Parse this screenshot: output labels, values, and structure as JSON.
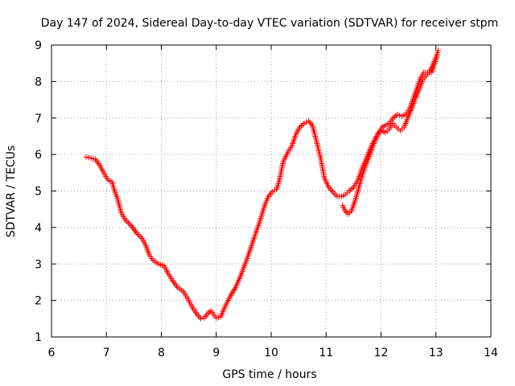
{
  "chart_data": {
    "type": "scatter",
    "title": "Day 147 of 2024, Sidereal Day-to-day VTEC variation (SDTVAR) for receiver stpm",
    "xlabel": "GPS time / hours",
    "ylabel": "SDTVAR / TECUs",
    "xlim": [
      6,
      14
    ],
    "ylim": [
      1,
      9
    ],
    "x_ticks": [
      "6",
      "7",
      "8",
      "9",
      "10",
      "11",
      "12",
      "13",
      "14"
    ],
    "y_ticks": [
      "1",
      "2",
      "3",
      "4",
      "5",
      "6",
      "7",
      "8",
      "9"
    ],
    "grid": true,
    "marker": "+",
    "color": "#ff0000",
    "series": [
      {
        "points": [
          [
            6.63,
            5.93
          ],
          [
            6.72,
            5.9
          ],
          [
            6.8,
            5.87
          ],
          [
            6.88,
            5.7
          ],
          [
            6.95,
            5.5
          ],
          [
            7.03,
            5.3
          ],
          [
            7.1,
            5.25
          ],
          [
            7.15,
            5.0
          ],
          [
            7.2,
            4.8
          ],
          [
            7.27,
            4.4
          ],
          [
            7.35,
            4.2
          ],
          [
            7.45,
            4.05
          ],
          [
            7.55,
            3.85
          ],
          [
            7.65,
            3.7
          ],
          [
            7.72,
            3.5
          ],
          [
            7.78,
            3.25
          ],
          [
            7.85,
            3.1
          ],
          [
            7.95,
            3.0
          ],
          [
            8.05,
            2.95
          ],
          [
            8.12,
            2.75
          ],
          [
            8.2,
            2.55
          ],
          [
            8.3,
            2.35
          ],
          [
            8.4,
            2.25
          ],
          [
            8.48,
            2.05
          ],
          [
            8.57,
            1.8
          ],
          [
            8.65,
            1.62
          ],
          [
            8.72,
            1.5
          ],
          [
            8.78,
            1.52
          ],
          [
            8.85,
            1.65
          ],
          [
            8.9,
            1.72
          ],
          [
            8.95,
            1.62
          ],
          [
            9.0,
            1.52
          ],
          [
            9.08,
            1.55
          ],
          [
            9.15,
            1.8
          ],
          [
            9.25,
            2.1
          ],
          [
            9.35,
            2.35
          ],
          [
            9.45,
            2.7
          ],
          [
            9.55,
            3.1
          ],
          [
            9.63,
            3.45
          ],
          [
            9.72,
            3.85
          ],
          [
            9.8,
            4.2
          ],
          [
            9.88,
            4.6
          ],
          [
            9.95,
            4.85
          ],
          [
            10.02,
            4.98
          ],
          [
            10.1,
            5.05
          ],
          [
            10.15,
            5.3
          ],
          [
            10.22,
            5.8
          ],
          [
            10.3,
            6.05
          ],
          [
            10.38,
            6.25
          ],
          [
            10.45,
            6.55
          ],
          [
            10.52,
            6.75
          ],
          [
            10.6,
            6.85
          ],
          [
            10.68,
            6.92
          ],
          [
            10.75,
            6.8
          ],
          [
            10.82,
            6.4
          ],
          [
            10.9,
            5.9
          ],
          [
            10.97,
            5.35
          ],
          [
            11.05,
            5.1
          ],
          [
            11.12,
            4.98
          ],
          [
            11.2,
            4.85
          ],
          [
            11.28,
            4.85
          ],
          [
            11.35,
            4.9
          ],
          [
            11.42,
            5.0
          ],
          [
            11.5,
            5.1
          ],
          [
            11.58,
            5.3
          ],
          [
            11.65,
            5.6
          ],
          [
            11.72,
            5.85
          ],
          [
            11.8,
            6.15
          ],
          [
            11.88,
            6.4
          ],
          [
            11.95,
            6.6
          ],
          [
            12.02,
            6.65
          ],
          [
            12.08,
            6.6
          ],
          [
            12.15,
            6.7
          ],
          [
            12.22,
            6.85
          ],
          [
            12.28,
            6.75
          ],
          [
            12.35,
            6.65
          ],
          [
            12.42,
            6.75
          ],
          [
            12.5,
            7.05
          ],
          [
            12.57,
            7.3
          ],
          [
            12.63,
            7.55
          ],
          [
            12.7,
            7.8
          ],
          [
            12.76,
            8.05
          ],
          [
            12.82,
            8.15
          ],
          [
            12.88,
            8.25
          ],
          [
            12.94,
            8.45
          ],
          [
            13.0,
            8.65
          ],
          [
            13.04,
            8.85
          ],
          [
            11.3,
            4.6
          ],
          [
            11.35,
            4.45
          ],
          [
            11.4,
            4.37
          ],
          [
            11.46,
            4.45
          ],
          [
            11.52,
            4.7
          ],
          [
            11.58,
            5.0
          ],
          [
            11.65,
            5.4
          ],
          [
            11.72,
            5.7
          ],
          [
            11.8,
            6.0
          ],
          [
            11.87,
            6.3
          ],
          [
            11.95,
            6.55
          ],
          [
            12.02,
            6.75
          ],
          [
            12.08,
            6.8
          ],
          [
            12.15,
            6.85
          ],
          [
            12.22,
            7.0
          ],
          [
            12.3,
            7.1
          ],
          [
            12.38,
            7.05
          ],
          [
            12.45,
            7.1
          ],
          [
            12.52,
            7.25
          ],
          [
            12.58,
            7.5
          ],
          [
            12.65,
            7.8
          ],
          [
            12.72,
            8.1
          ],
          [
            12.78,
            8.25
          ],
          [
            12.85,
            8.25
          ],
          [
            12.92,
            8.25
          ],
          [
            12.97,
            8.45
          ],
          [
            13.02,
            8.7
          ]
        ]
      }
    ]
  }
}
